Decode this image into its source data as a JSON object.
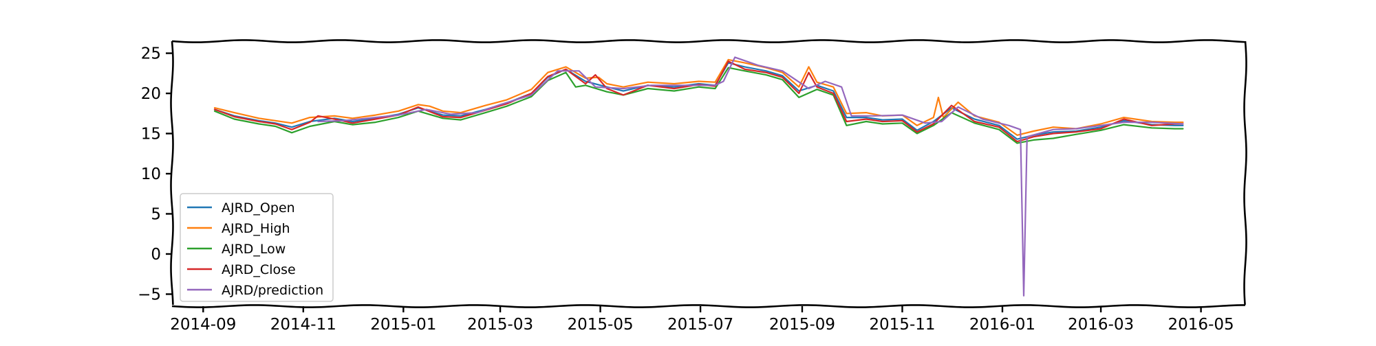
{
  "chart_data": {
    "type": "line",
    "title": "",
    "xlabel": "",
    "ylabel": "",
    "x_range": [
      "2014-08-13",
      "2016-05-28"
    ],
    "ylim": [
      -6.5,
      26.5
    ],
    "x_ticks": [
      "2014-09",
      "2014-11",
      "2015-01",
      "2015-03",
      "2015-05",
      "2015-07",
      "2015-09",
      "2015-11",
      "2016-01",
      "2016-03",
      "2016-05"
    ],
    "y_ticks": [
      -5,
      0,
      5,
      10,
      15,
      20,
      25
    ],
    "grid": false,
    "legend_position": "lower-left",
    "colors": {
      "AJRD_Open": "#1f77b4",
      "AJRD_High": "#ff7f0e",
      "AJRD_Low": "#2ca02c",
      "AJRD_Close": "#d62728",
      "AJRD/prediction": "#9467bd"
    },
    "series": [
      {
        "name": "AJRD_Open",
        "points": [
          [
            "2014-09-08",
            18.0
          ],
          [
            "2014-09-20",
            17.2
          ],
          [
            "2014-10-05",
            16.6
          ],
          [
            "2014-10-15",
            16.3
          ],
          [
            "2014-10-25",
            15.8
          ],
          [
            "2014-11-05",
            16.5
          ],
          [
            "2014-11-20",
            16.9
          ],
          [
            "2014-12-01",
            16.5
          ],
          [
            "2014-12-15",
            16.9
          ],
          [
            "2014-12-29",
            17.4
          ],
          [
            "2015-01-10",
            18.2
          ],
          [
            "2015-01-25",
            17.3
          ],
          [
            "2015-02-05",
            17.2
          ],
          [
            "2015-02-20",
            18.0
          ],
          [
            "2015-03-05",
            18.8
          ],
          [
            "2015-03-20",
            20.0
          ],
          [
            "2015-03-30",
            22.0
          ],
          [
            "2015-04-10",
            23.0
          ],
          [
            "2015-04-22",
            21.5
          ],
          [
            "2015-05-05",
            20.8
          ],
          [
            "2015-05-15",
            20.3
          ],
          [
            "2015-05-30",
            21.0
          ],
          [
            "2015-06-15",
            20.8
          ],
          [
            "2015-06-30",
            21.2
          ],
          [
            "2015-07-10",
            21.0
          ],
          [
            "2015-07-18",
            23.8
          ],
          [
            "2015-07-28",
            23.3
          ],
          [
            "2015-08-10",
            22.8
          ],
          [
            "2015-08-20",
            22.2
          ],
          [
            "2015-08-30",
            20.3
          ],
          [
            "2015-09-10",
            21.0
          ],
          [
            "2015-09-20",
            20.3
          ],
          [
            "2015-09-28",
            17.0
          ],
          [
            "2015-10-10",
            17.0
          ],
          [
            "2015-10-20",
            16.7
          ],
          [
            "2015-11-01",
            16.8
          ],
          [
            "2015-11-10",
            15.4
          ],
          [
            "2015-11-20",
            16.5
          ],
          [
            "2015-12-01",
            18.2
          ],
          [
            "2015-12-15",
            16.8
          ],
          [
            "2015-12-30",
            16.0
          ],
          [
            "2016-01-10",
            14.3
          ],
          [
            "2016-01-20",
            14.8
          ],
          [
            "2016-02-01",
            15.2
          ],
          [
            "2016-02-15",
            15.3
          ],
          [
            "2016-03-01",
            15.8
          ],
          [
            "2016-03-15",
            16.6
          ],
          [
            "2016-04-01",
            16.1
          ],
          [
            "2016-04-15",
            16.0
          ],
          [
            "2016-04-20",
            16.0
          ]
        ]
      },
      {
        "name": "AJRD_High",
        "points": [
          [
            "2014-09-08",
            18.2
          ],
          [
            "2014-09-20",
            17.6
          ],
          [
            "2014-10-05",
            16.9
          ],
          [
            "2014-10-15",
            16.6
          ],
          [
            "2014-10-25",
            16.3
          ],
          [
            "2014-11-05",
            17.0
          ],
          [
            "2014-11-20",
            17.2
          ],
          [
            "2014-12-01",
            16.9
          ],
          [
            "2014-12-15",
            17.3
          ],
          [
            "2014-12-29",
            17.8
          ],
          [
            "2015-01-10",
            18.6
          ],
          [
            "2015-01-17",
            18.4
          ],
          [
            "2015-01-25",
            17.8
          ],
          [
            "2015-02-05",
            17.6
          ],
          [
            "2015-02-20",
            18.5
          ],
          [
            "2015-03-05",
            19.2
          ],
          [
            "2015-03-20",
            20.5
          ],
          [
            "2015-03-30",
            22.6
          ],
          [
            "2015-04-10",
            23.3
          ],
          [
            "2015-04-22",
            21.9
          ],
          [
            "2015-04-30",
            22.0
          ],
          [
            "2015-05-05",
            21.2
          ],
          [
            "2015-05-15",
            20.8
          ],
          [
            "2015-05-30",
            21.4
          ],
          [
            "2015-06-15",
            21.2
          ],
          [
            "2015-06-30",
            21.5
          ],
          [
            "2015-07-10",
            21.4
          ],
          [
            "2015-07-18",
            24.2
          ],
          [
            "2015-07-28",
            23.8
          ],
          [
            "2015-08-10",
            23.2
          ],
          [
            "2015-08-20",
            22.6
          ],
          [
            "2015-08-30",
            20.8
          ],
          [
            "2015-09-05",
            23.3
          ],
          [
            "2015-09-10",
            21.4
          ],
          [
            "2015-09-20",
            20.8
          ],
          [
            "2015-09-28",
            17.5
          ],
          [
            "2015-10-10",
            17.6
          ],
          [
            "2015-10-20",
            17.2
          ],
          [
            "2015-11-01",
            17.3
          ],
          [
            "2015-11-10",
            16.0
          ],
          [
            "2015-11-20",
            17.0
          ],
          [
            "2015-11-23",
            19.5
          ],
          [
            "2015-11-26",
            17.0
          ],
          [
            "2015-12-05",
            18.9
          ],
          [
            "2015-12-15",
            17.2
          ],
          [
            "2015-12-30",
            16.4
          ],
          [
            "2016-01-10",
            14.8
          ],
          [
            "2016-01-20",
            15.3
          ],
          [
            "2016-02-01",
            15.8
          ],
          [
            "2016-02-15",
            15.6
          ],
          [
            "2016-03-01",
            16.2
          ],
          [
            "2016-03-15",
            17.0
          ],
          [
            "2016-04-01",
            16.5
          ],
          [
            "2016-04-15",
            16.4
          ],
          [
            "2016-04-20",
            16.4
          ]
        ]
      },
      {
        "name": "AJRD_Low",
        "points": [
          [
            "2014-09-08",
            17.8
          ],
          [
            "2014-09-20",
            16.8
          ],
          [
            "2014-10-05",
            16.2
          ],
          [
            "2014-10-15",
            15.9
          ],
          [
            "2014-10-25",
            15.1
          ],
          [
            "2014-11-05",
            15.9
          ],
          [
            "2014-11-20",
            16.5
          ],
          [
            "2014-12-01",
            16.1
          ],
          [
            "2014-12-15",
            16.4
          ],
          [
            "2014-12-29",
            17.0
          ],
          [
            "2015-01-10",
            17.8
          ],
          [
            "2015-01-25",
            16.9
          ],
          [
            "2015-02-05",
            16.7
          ],
          [
            "2015-02-20",
            17.6
          ],
          [
            "2015-03-05",
            18.4
          ],
          [
            "2015-03-20",
            19.6
          ],
          [
            "2015-03-30",
            21.6
          ],
          [
            "2015-04-10",
            22.6
          ],
          [
            "2015-04-16",
            20.8
          ],
          [
            "2015-04-22",
            21.0
          ],
          [
            "2015-05-05",
            20.2
          ],
          [
            "2015-05-15",
            19.8
          ],
          [
            "2015-05-30",
            20.6
          ],
          [
            "2015-06-15",
            20.3
          ],
          [
            "2015-06-30",
            20.8
          ],
          [
            "2015-07-10",
            20.6
          ],
          [
            "2015-07-18",
            23.2
          ],
          [
            "2015-07-28",
            22.8
          ],
          [
            "2015-08-10",
            22.3
          ],
          [
            "2015-08-20",
            21.7
          ],
          [
            "2015-08-30",
            19.5
          ],
          [
            "2015-09-10",
            20.5
          ],
          [
            "2015-09-20",
            19.8
          ],
          [
            "2015-09-28",
            16.0
          ],
          [
            "2015-10-10",
            16.5
          ],
          [
            "2015-10-20",
            16.2
          ],
          [
            "2015-11-01",
            16.3
          ],
          [
            "2015-11-10",
            15.0
          ],
          [
            "2015-11-20",
            16.0
          ],
          [
            "2015-12-01",
            17.6
          ],
          [
            "2015-12-15",
            16.3
          ],
          [
            "2015-12-30",
            15.5
          ],
          [
            "2016-01-10",
            13.8
          ],
          [
            "2016-01-20",
            14.2
          ],
          [
            "2016-02-01",
            14.4
          ],
          [
            "2016-02-15",
            14.9
          ],
          [
            "2016-03-01",
            15.4
          ],
          [
            "2016-03-15",
            16.1
          ],
          [
            "2016-04-01",
            15.7
          ],
          [
            "2016-04-15",
            15.6
          ],
          [
            "2016-04-20",
            15.6
          ]
        ]
      },
      {
        "name": "AJRD_Close",
        "points": [
          [
            "2014-09-08",
            18.0
          ],
          [
            "2014-09-20",
            17.1
          ],
          [
            "2014-10-05",
            16.5
          ],
          [
            "2014-10-15",
            16.2
          ],
          [
            "2014-10-25",
            15.5
          ],
          [
            "2014-11-05",
            16.4
          ],
          [
            "2014-11-10",
            17.2
          ],
          [
            "2014-11-20",
            16.8
          ],
          [
            "2014-12-01",
            16.3
          ],
          [
            "2014-12-15",
            16.8
          ],
          [
            "2014-12-29",
            17.3
          ],
          [
            "2015-01-10",
            18.3
          ],
          [
            "2015-01-25",
            17.1
          ],
          [
            "2015-02-05",
            17.0
          ],
          [
            "2015-02-20",
            17.9
          ],
          [
            "2015-03-05",
            18.7
          ],
          [
            "2015-03-20",
            20.0
          ],
          [
            "2015-03-30",
            22.1
          ],
          [
            "2015-04-10",
            23.0
          ],
          [
            "2015-04-22",
            21.2
          ],
          [
            "2015-04-28",
            22.3
          ],
          [
            "2015-05-05",
            20.6
          ],
          [
            "2015-05-15",
            19.8
          ],
          [
            "2015-05-30",
            21.0
          ],
          [
            "2015-06-15",
            20.6
          ],
          [
            "2015-06-30",
            21.1
          ],
          [
            "2015-07-10",
            20.9
          ],
          [
            "2015-07-18",
            24.0
          ],
          [
            "2015-07-28",
            23.0
          ],
          [
            "2015-08-10",
            22.6
          ],
          [
            "2015-08-20",
            22.0
          ],
          [
            "2015-08-30",
            20.0
          ],
          [
            "2015-09-05",
            22.6
          ],
          [
            "2015-09-10",
            20.8
          ],
          [
            "2015-09-20",
            20.0
          ],
          [
            "2015-09-28",
            16.5
          ],
          [
            "2015-10-10",
            16.8
          ],
          [
            "2015-10-20",
            16.5
          ],
          [
            "2015-11-01",
            16.6
          ],
          [
            "2015-11-10",
            15.2
          ],
          [
            "2015-11-20",
            16.2
          ],
          [
            "2015-12-01",
            18.5
          ],
          [
            "2015-12-15",
            16.5
          ],
          [
            "2015-12-30",
            15.8
          ],
          [
            "2016-01-10",
            14.0
          ],
          [
            "2016-01-20",
            14.6
          ],
          [
            "2016-02-01",
            15.0
          ],
          [
            "2016-02-15",
            15.2
          ],
          [
            "2016-03-01",
            15.6
          ],
          [
            "2016-03-15",
            16.8
          ],
          [
            "2016-04-01",
            16.0
          ],
          [
            "2016-04-15",
            16.2
          ],
          [
            "2016-04-20",
            16.2
          ]
        ]
      },
      {
        "name": "AJRD/prediction",
        "points": [
          [
            "2014-11-10",
            16.5
          ],
          [
            "2014-11-25",
            16.6
          ],
          [
            "2014-12-10",
            16.9
          ],
          [
            "2014-12-29",
            17.3
          ],
          [
            "2015-01-15",
            18.0
          ],
          [
            "2015-01-30",
            17.4
          ],
          [
            "2015-02-15",
            17.6
          ],
          [
            "2015-03-01",
            18.6
          ],
          [
            "2015-03-20",
            19.8
          ],
          [
            "2015-04-05",
            22.8
          ],
          [
            "2015-04-18",
            22.8
          ],
          [
            "2015-04-28",
            20.8
          ],
          [
            "2015-05-15",
            20.6
          ],
          [
            "2015-06-01",
            21.0
          ],
          [
            "2015-06-20",
            21.0
          ],
          [
            "2015-07-10",
            21.0
          ],
          [
            "2015-07-15",
            21.5
          ],
          [
            "2015-07-22",
            24.5
          ],
          [
            "2015-08-05",
            23.5
          ],
          [
            "2015-08-20",
            22.8
          ],
          [
            "2015-09-05",
            20.6
          ],
          [
            "2015-09-15",
            21.5
          ],
          [
            "2015-09-25",
            20.8
          ],
          [
            "2015-10-01",
            17.2
          ],
          [
            "2015-10-15",
            17.2
          ],
          [
            "2015-11-01",
            17.3
          ],
          [
            "2015-11-15",
            16.3
          ],
          [
            "2015-11-25",
            16.5
          ],
          [
            "2015-12-05",
            18.3
          ],
          [
            "2015-12-20",
            16.8
          ],
          [
            "2016-01-05",
            16.0
          ],
          [
            "2016-01-12",
            15.5
          ],
          [
            "2016-01-14",
            -5.2
          ],
          [
            "2016-01-16",
            14.6
          ],
          [
            "2016-02-01",
            15.5
          ],
          [
            "2016-02-15",
            15.6
          ],
          [
            "2016-03-01",
            16.0
          ],
          [
            "2016-03-15",
            16.4
          ],
          [
            "2016-04-01",
            16.4
          ],
          [
            "2016-04-20",
            16.2
          ]
        ]
      }
    ]
  }
}
